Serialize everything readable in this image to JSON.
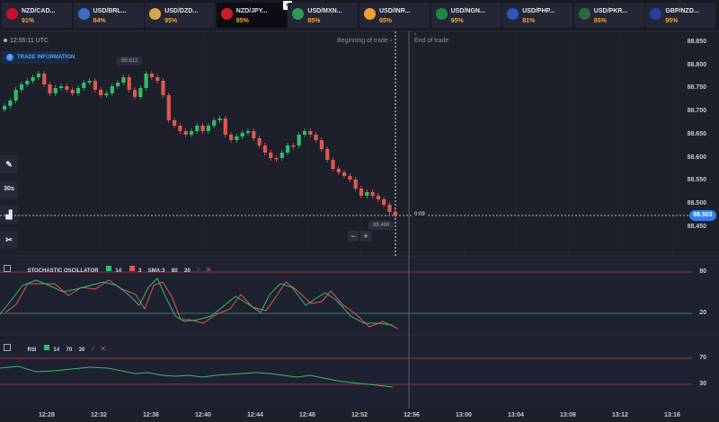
{
  "tabs": [
    {
      "name": "NZD/CAD...",
      "pct": "91%",
      "color": "#c8102e"
    },
    {
      "name": "USD/BRL...",
      "pct": "84%",
      "color": "#3c6cc4"
    },
    {
      "name": "USD/DZD...",
      "pct": "95%",
      "color": "#d4a84a"
    },
    {
      "name": "NZD/JPY...",
      "pct": "95%",
      "color": "#d01b2b"
    },
    {
      "name": "USD/MXN...",
      "pct": "85%",
      "color": "#2e9a52"
    },
    {
      "name": "USD/INR...",
      "pct": "95%",
      "color": "#f29d38"
    },
    {
      "name": "USD/NGN...",
      "pct": "95%",
      "color": "#1b8a3e"
    },
    {
      "name": "USD/PHP...",
      "pct": "81%",
      "color": "#2c56b8"
    },
    {
      "name": "USD/PKR...",
      "pct": "85%",
      "color": "#2c6a3a"
    },
    {
      "name": "GBP/NZD...",
      "pct": "95%",
      "color": "#2a3f9c"
    }
  ],
  "clock": "12:55:11 UTC",
  "trade_info": "TRADE INFORMATION",
  "side_buttons": {
    "timeframe": "30s"
  },
  "labels": {
    "beginning": "Beginning of trade",
    "end": "End of trade",
    "open_bubble": "88.612",
    "low_bubble": "88.496",
    "timer": "0:09",
    "current_price": "88.503"
  },
  "price_axis": [
    "88.850",
    "88.800",
    "88.750",
    "88.700",
    "88.650",
    "88.600",
    "88.550",
    "88.500",
    "88.450"
  ],
  "stochastic": {
    "title": "STOCHASTIC OSCILLATOR",
    "k": "14",
    "d": "3",
    "sma": "SMA:3",
    "upper": "80",
    "lower": "20",
    "colors": {
      "k": "#2ebd6b",
      "d": "#e0574f"
    }
  },
  "rsi": {
    "title": "RSI",
    "period": "14",
    "upper": "70",
    "lower": "30"
  },
  "time_axis": [
    "12:28",
    "12:32",
    "12:36",
    "12:40",
    "12:44",
    "12:48",
    "12:52",
    "12:56",
    "13:00",
    "13:04",
    "13:08",
    "13:12",
    "13:16"
  ],
  "colors": {
    "up": "#2ebd6b",
    "down": "#e0574f",
    "accent": "#2f80ed"
  }
}
